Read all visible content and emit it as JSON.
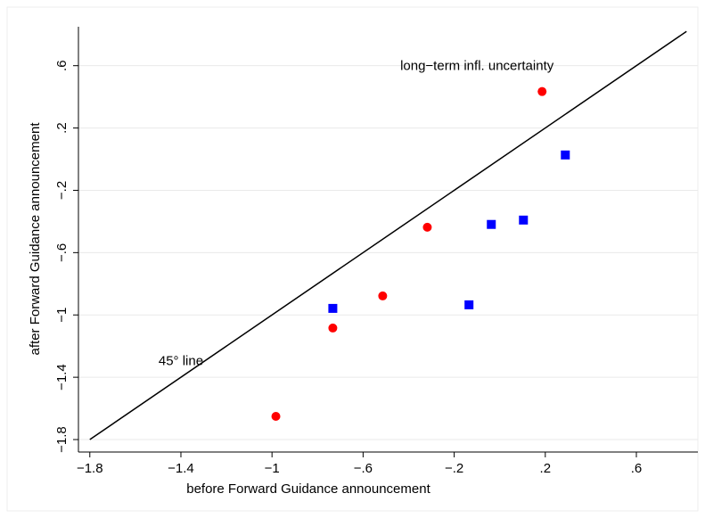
{
  "chart_data": {
    "type": "scatter",
    "xlabel": "before Forward Guidance announcement",
    "ylabel": "after Forward Guidance announcement",
    "annotations": [
      {
        "text": "long−term infl. uncertainty",
        "x": -0.1,
        "y": 0.595
      },
      {
        "text": "45° line",
        "x": -1.4,
        "y": -1.3
      }
    ],
    "diagonal": [
      -1.8,
      0.82
    ],
    "series": [
      {
        "color": "#ff0000",
        "marker": "circle",
        "x": [
          -0.983,
          -0.733,
          -0.514,
          -0.318,
          0.186
        ],
        "values": [
          -1.651,
          -1.084,
          -0.878,
          -0.437,
          0.434
        ]
      },
      {
        "color": "#0000ff",
        "marker": "square",
        "x": [
          -0.733,
          -0.135,
          -0.037,
          0.104,
          0.288
        ],
        "values": [
          -0.958,
          -0.935,
          -0.419,
          -0.391,
          0.027
        ]
      }
    ],
    "xlim": [
      -1.85,
      0.87
    ],
    "ylim": [
      -1.88,
      0.85
    ],
    "xticks": [
      {
        "value": -1.8,
        "label": "−1.8"
      },
      {
        "value": -1.4,
        "label": "−1.4"
      },
      {
        "value": -1,
        "label": "−1"
      },
      {
        "value": -0.6,
        "label": "−.6"
      },
      {
        "value": -0.2,
        "label": "−.2"
      },
      {
        "value": 0.2,
        "label": ".2"
      },
      {
        "value": 0.6,
        "label": ".6"
      }
    ],
    "yticks": [
      {
        "value": -1.8,
        "label": "−1.8"
      },
      {
        "value": -1.4,
        "label": "−1.4"
      },
      {
        "value": -1,
        "label": "−1"
      },
      {
        "value": -0.6,
        "label": "−.6"
      },
      {
        "value": -0.2,
        "label": "−.2"
      },
      {
        "value": 0.2,
        "label": ".2"
      },
      {
        "value": 0.6,
        "label": ".6"
      }
    ],
    "grid": true
  }
}
